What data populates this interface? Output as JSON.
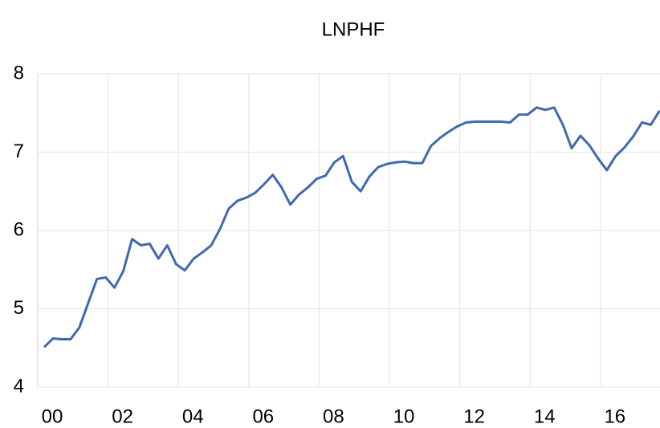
{
  "chart_data": {
    "type": "line",
    "title": "LNPHF",
    "categories": [
      "00",
      null,
      null,
      null,
      null,
      null,
      null,
      null,
      "02",
      null,
      null,
      null,
      null,
      null,
      null,
      null,
      "04",
      null,
      null,
      null,
      null,
      null,
      null,
      null,
      "06",
      null,
      null,
      null,
      null,
      null,
      null,
      null,
      "08",
      null,
      null,
      null,
      null,
      null,
      null,
      null,
      "10",
      null,
      null,
      null,
      null,
      null,
      null,
      null,
      "12",
      null,
      null,
      null,
      null,
      null,
      null,
      null,
      "14",
      null,
      null,
      null,
      null,
      null,
      null,
      null,
      "16",
      null,
      null,
      null,
      null,
      null,
      null
    ],
    "series": [
      {
        "name": "LNPHF",
        "color": "#4169ae",
        "values": [
          4.51,
          4.62,
          4.61,
          4.61,
          4.76,
          5.07,
          5.38,
          5.4,
          5.27,
          5.48,
          5.89,
          5.81,
          5.83,
          5.64,
          5.81,
          5.57,
          5.49,
          5.64,
          5.72,
          5.81,
          6.02,
          6.28,
          6.38,
          6.42,
          6.48,
          6.59,
          6.71,
          6.55,
          6.33,
          6.46,
          6.55,
          6.66,
          6.7,
          6.87,
          6.95,
          6.62,
          6.5,
          6.69,
          6.81,
          6.85,
          6.87,
          6.88,
          6.86,
          6.86,
          7.08,
          7.18,
          7.26,
          7.33,
          7.38,
          7.39,
          7.39,
          7.39,
          7.39,
          7.38,
          7.48,
          7.48,
          7.57,
          7.54,
          7.57,
          7.35,
          7.05,
          7.21,
          7.09,
          6.92,
          6.77,
          6.95,
          7.06,
          7.2,
          7.38,
          7.35,
          7.53
        ]
      }
    ],
    "ylim": [
      4,
      8
    ],
    "yticks": [
      4,
      5,
      6,
      7,
      8
    ],
    "grid": true
  }
}
